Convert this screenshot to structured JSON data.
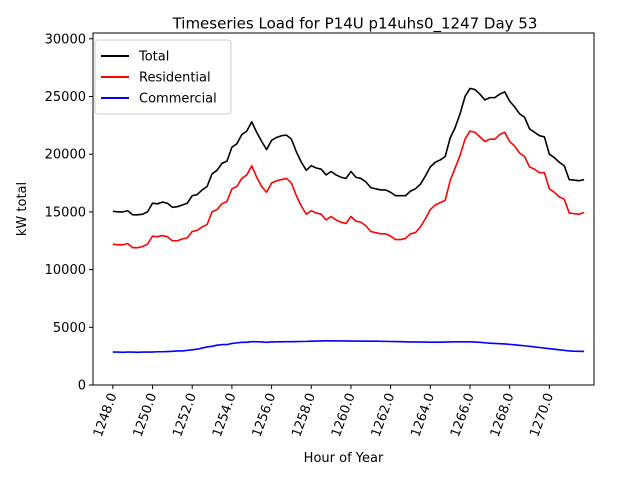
{
  "chart_data": {
    "type": "line",
    "title": "Timeseries Load for P14U p14uhs0_1247  Day 53",
    "xlabel": "Hour of Year",
    "ylabel": "kW total",
    "xlim": [
      1247.0,
      1272.25
    ],
    "ylim": [
      0,
      30500
    ],
    "xticks": [
      1248,
      1250,
      1252,
      1254,
      1256,
      1258,
      1260,
      1262,
      1264,
      1266,
      1268,
      1270
    ],
    "xtick_labels": [
      "1248.0",
      "1250.0",
      "1252.0",
      "1254.0",
      "1256.0",
      "1258.0",
      "1260.0",
      "1262.0",
      "1264.0",
      "1266.0",
      "1268.0",
      "1270.0"
    ],
    "yticks": [
      0,
      5000,
      10000,
      15000,
      20000,
      25000,
      30000
    ],
    "ytick_labels": [
      "0",
      "5000",
      "10000",
      "15000",
      "20000",
      "25000",
      "30000"
    ],
    "legend_position": "top-left",
    "x": [
      1248.0,
      1248.25,
      1248.5,
      1248.75,
      1249.0,
      1249.25,
      1249.5,
      1249.75,
      1250.0,
      1250.25,
      1250.5,
      1250.75,
      1251.0,
      1251.25,
      1251.5,
      1251.75,
      1252.0,
      1252.25,
      1252.5,
      1252.75,
      1253.0,
      1253.25,
      1253.5,
      1253.75,
      1254.0,
      1254.25,
      1254.5,
      1254.75,
      1255.0,
      1255.25,
      1255.5,
      1255.75,
      1256.0,
      1256.25,
      1256.5,
      1256.75,
      1257.0,
      1257.25,
      1257.5,
      1257.75,
      1258.0,
      1258.25,
      1258.5,
      1258.75,
      1259.0,
      1259.25,
      1259.5,
      1259.75,
      1260.0,
      1260.25,
      1260.5,
      1260.75,
      1261.0,
      1261.25,
      1261.5,
      1261.75,
      1262.0,
      1262.25,
      1262.5,
      1262.75,
      1263.0,
      1263.25,
      1263.5,
      1263.75,
      1264.0,
      1264.25,
      1264.5,
      1264.75,
      1265.0,
      1265.25,
      1265.5,
      1265.75,
      1266.0,
      1266.25,
      1266.5,
      1266.75,
      1267.0,
      1267.25,
      1267.5,
      1267.75,
      1268.0,
      1268.25,
      1268.5,
      1268.75,
      1269.0,
      1269.25,
      1269.5,
      1269.75,
      1270.0,
      1270.25,
      1270.5,
      1270.75,
      1271.0,
      1271.25,
      1271.5,
      1271.75
    ],
    "series": [
      {
        "name": "Total",
        "color": "#000000",
        "values": [
          15050,
          15000,
          15000,
          15100,
          14750,
          14750,
          14800,
          15000,
          15750,
          15700,
          15850,
          15750,
          15400,
          15450,
          15600,
          15750,
          16400,
          16500,
          16900,
          17200,
          18300,
          18600,
          19200,
          19400,
          20600,
          20900,
          21700,
          22000,
          22800,
          21900,
          21100,
          20400,
          21200,
          21450,
          21600,
          21650,
          21300,
          20200,
          19300,
          18600,
          19000,
          18800,
          18700,
          18200,
          18500,
          18200,
          18000,
          17900,
          18500,
          18000,
          17900,
          17600,
          17100,
          17000,
          16900,
          16900,
          16700,
          16400,
          16400,
          16400,
          16800,
          17000,
          17400,
          18100,
          18900,
          19300,
          19500,
          19800,
          21400,
          22300,
          23500,
          25000,
          25700,
          25600,
          25200,
          24700,
          24900,
          24900,
          25200,
          25400,
          24600,
          24100,
          23500,
          23200,
          22200,
          21900,
          21600,
          21500,
          20000,
          19700,
          19300,
          19000,
          17800,
          17750,
          17700,
          17800
        ]
      },
      {
        "name": "Residential",
        "color": "#ff0000",
        "values": [
          12200,
          12150,
          12150,
          12250,
          11900,
          11900,
          12000,
          12200,
          12900,
          12850,
          12950,
          12850,
          12500,
          12500,
          12650,
          12750,
          13300,
          13400,
          13700,
          13900,
          15000,
          15200,
          15700,
          15900,
          17000,
          17200,
          17900,
          18200,
          19000,
          18000,
          17200,
          16700,
          17500,
          17700,
          17800,
          17900,
          17500,
          16400,
          15500,
          14800,
          15100,
          14900,
          14800,
          14300,
          14600,
          14300,
          14100,
          14000,
          14600,
          14200,
          14100,
          13800,
          13300,
          13200,
          13100,
          13100,
          12900,
          12600,
          12600,
          12700,
          13100,
          13200,
          13700,
          14400,
          15200,
          15600,
          15800,
          16000,
          17700,
          18800,
          19900,
          21300,
          22000,
          21900,
          21500,
          21100,
          21300,
          21300,
          21700,
          21900,
          21100,
          20700,
          20100,
          19800,
          18900,
          18700,
          18400,
          18400,
          17000,
          16700,
          16300,
          16100,
          14900,
          14850,
          14800,
          14950
        ]
      },
      {
        "name": "Commercial",
        "color": "#0000ff",
        "values": [
          2850,
          2850,
          2830,
          2850,
          2850,
          2830,
          2850,
          2850,
          2850,
          2880,
          2880,
          2900,
          2920,
          2950,
          2950,
          3000,
          3050,
          3100,
          3200,
          3300,
          3350,
          3450,
          3500,
          3500,
          3600,
          3650,
          3700,
          3700,
          3750,
          3750,
          3730,
          3700,
          3730,
          3740,
          3740,
          3750,
          3750,
          3760,
          3770,
          3780,
          3800,
          3810,
          3820,
          3830,
          3830,
          3820,
          3820,
          3820,
          3810,
          3810,
          3810,
          3800,
          3800,
          3800,
          3790,
          3780,
          3770,
          3760,
          3750,
          3740,
          3730,
          3730,
          3720,
          3720,
          3710,
          3710,
          3710,
          3720,
          3730,
          3740,
          3740,
          3740,
          3740,
          3720,
          3700,
          3660,
          3620,
          3600,
          3580,
          3560,
          3520,
          3480,
          3440,
          3400,
          3350,
          3300,
          3250,
          3200,
          3150,
          3100,
          3050,
          3000,
          2950,
          2930,
          2920,
          2910
        ]
      }
    ]
  }
}
